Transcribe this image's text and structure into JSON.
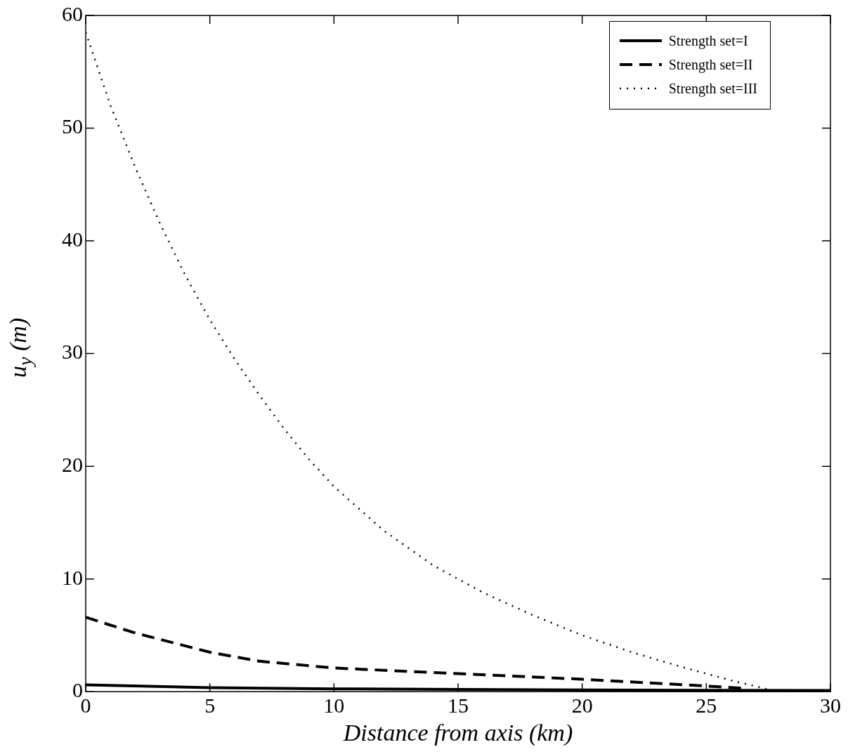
{
  "chart_data": {
    "type": "line",
    "xlabel": "Distance from axis (km)",
    "ylabel": "u$_{y}$ (m)",
    "xlim": [
      0,
      30
    ],
    "ylim": [
      0,
      60
    ],
    "xticks": [
      0,
      5,
      10,
      15,
      20,
      25,
      30
    ],
    "yticks": [
      0,
      10,
      20,
      30,
      40,
      50,
      60
    ],
    "grid": false,
    "legend": "top right",
    "marker": "none",
    "series": [
      {
        "name": "Strength set=I",
        "color": "#000000",
        "line_style": "solid",
        "x": [
          0,
          5,
          10,
          15,
          20,
          25,
          30
        ],
        "values": [
          0.6,
          0.35,
          0.25,
          0.2,
          0.15,
          0.12,
          0.1
        ]
      },
      {
        "name": "Strength set=II",
        "color": "#000000",
        "line_style": "dashed",
        "x": [
          0,
          2,
          5,
          7,
          10,
          15,
          20,
          25,
          26.5
        ],
        "values": [
          6.6,
          5.2,
          3.5,
          2.7,
          2.1,
          1.6,
          1.1,
          0.5,
          0.3
        ]
      },
      {
        "name": "Strength set=III",
        "color": "#000000",
        "line_style": "dotted",
        "x": [
          0,
          1,
          2,
          3,
          4,
          5,
          6,
          7,
          8,
          9,
          10,
          12,
          14,
          15,
          16,
          18,
          20,
          22,
          24,
          26,
          27.5
        ],
        "values": [
          58.5,
          52,
          46.5,
          41.5,
          37,
          33,
          29.5,
          26.3,
          23.3,
          20.6,
          18.2,
          14.3,
          11.2,
          10,
          8.8,
          6.8,
          5,
          3.5,
          2.2,
          1,
          0.2
        ]
      }
    ]
  }
}
